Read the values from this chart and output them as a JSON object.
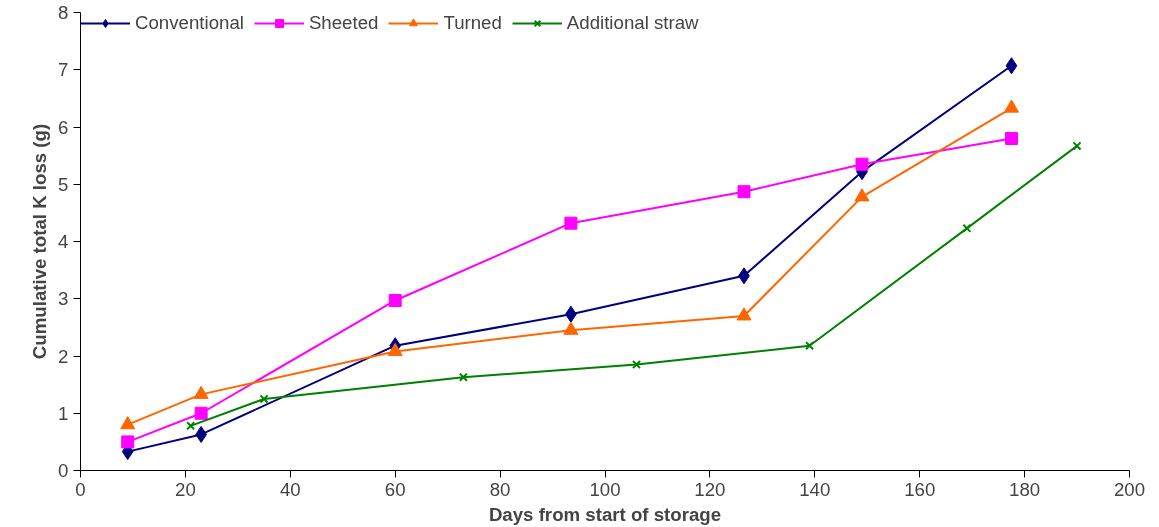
{
  "chart_data": {
    "type": "line",
    "xlabel": "Days from start of storage",
    "ylabel": "Cumulative total K loss (g)",
    "xlim": [
      0,
      200
    ],
    "xticks": [
      0,
      20,
      40,
      60,
      80,
      100,
      120,
      140,
      160,
      180,
      200
    ],
    "ylim": [
      0,
      8
    ],
    "yticks": [
      0,
      1,
      2,
      3,
      4,
      5,
      6,
      7,
      8
    ],
    "grid": false,
    "legend": "top left",
    "series": [
      {
        "name": "Conventional",
        "color": "#000080",
        "marker": "diamond",
        "x": [
          9,
          23,
          60,
          93.5,
          126.5,
          149,
          177.5
        ],
        "values": [
          0.33,
          0.63,
          2.18,
          2.73,
          3.4,
          5.22,
          7.07
        ]
      },
      {
        "name": "Sheeted",
        "color": "#ff00ff",
        "marker": "square",
        "x": [
          9,
          23,
          60,
          93.5,
          126.5,
          149,
          177.5
        ],
        "values": [
          0.5,
          1.0,
          2.97,
          4.32,
          4.87,
          5.35,
          5.8
        ]
      },
      {
        "name": "Turned",
        "color": "#ff6600",
        "marker": "triangle",
        "x": [
          9,
          23,
          60,
          93.5,
          126.5,
          149,
          177.5
        ],
        "values": [
          0.8,
          1.33,
          2.08,
          2.45,
          2.7,
          4.78,
          6.33
        ]
      },
      {
        "name": "Additional straw",
        "color": "#008000",
        "marker": "cross",
        "x": [
          21,
          35,
          73,
          106,
          139,
          169,
          190
        ],
        "values": [
          0.78,
          1.25,
          1.63,
          1.85,
          2.18,
          4.23,
          5.67
        ]
      }
    ]
  }
}
